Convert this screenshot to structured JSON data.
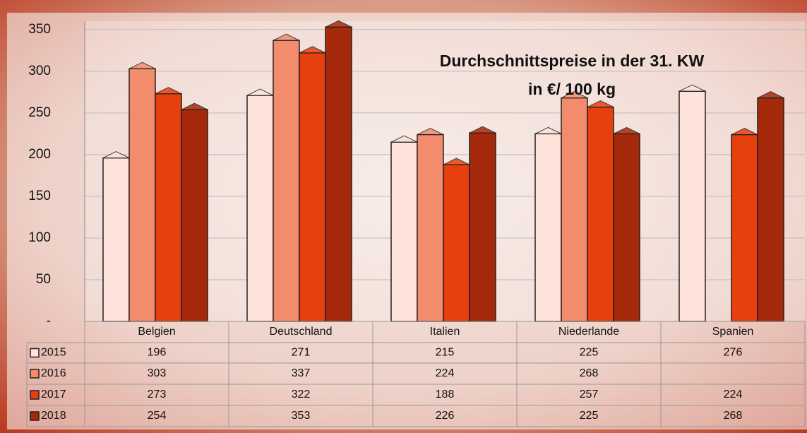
{
  "chart_data": {
    "type": "bar",
    "title": "Durchschnittspreise in der 31. KW",
    "subtitle": "in €/ 100 kg",
    "categories": [
      "Belgien",
      "Deutschland",
      "Italien",
      "Niederlande",
      "Spanien"
    ],
    "series": [
      {
        "name": "2015",
        "color": "#fde3da",
        "values": [
          196,
          271,
          215,
          225,
          276
        ]
      },
      {
        "name": "2016",
        "color": "#f28c6c",
        "values": [
          303,
          337,
          224,
          268,
          null
        ]
      },
      {
        "name": "2017",
        "color": "#e6400e",
        "values": [
          273,
          322,
          188,
          257,
          224
        ]
      },
      {
        "name": "2018",
        "color": "#a52a0b",
        "values": [
          254,
          353,
          226,
          225,
          268
        ]
      }
    ],
    "ylim": [
      0,
      360
    ],
    "yticks": [
      {
        "value": 0,
        "label": "-"
      },
      50,
      100,
      150,
      200,
      250,
      300,
      350
    ],
    "grid": true
  }
}
